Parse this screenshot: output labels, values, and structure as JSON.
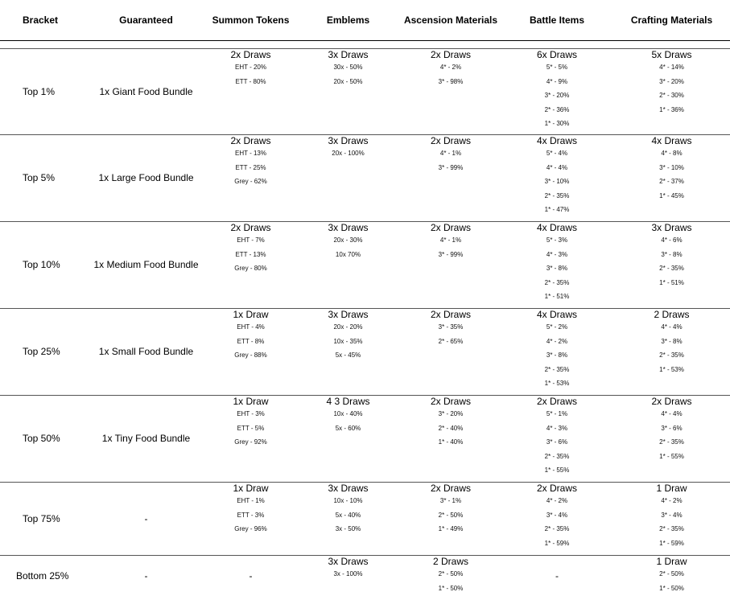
{
  "headers": {
    "bracket": "Bracket",
    "guaranteed": "Guaranteed",
    "summon_tokens": "Summon Tokens",
    "emblems": "Emblems",
    "ascension_materials": "Ascension Materials",
    "battle_items": "Battle Items",
    "crafting_materials": "Crafting Materials"
  },
  "rows": [
    {
      "bracket": "Top 1%",
      "guaranteed": "1x Giant Food Bundle",
      "summon_tokens": {
        "draws": "2x Draws",
        "lines": [
          "EHT - 20%",
          "ETT - 80%"
        ]
      },
      "emblems": {
        "draws": "3x Draws",
        "lines": [
          "30x - 50%",
          "20x - 50%"
        ]
      },
      "ascension_materials": {
        "draws": "2x Draws",
        "lines": [
          "4* - 2%",
          "3* - 98%"
        ]
      },
      "battle_items": {
        "draws": "6x Draws",
        "lines": [
          "5* - 5%",
          "4* - 9%",
          "3* - 20%",
          "2* - 36%",
          "1* - 30%"
        ]
      },
      "crafting_materials": {
        "draws": "5x Draws",
        "lines": [
          "4* - 14%",
          "3* - 20%",
          "2* - 30%",
          "1* - 36%"
        ]
      }
    },
    {
      "bracket": "Top 5%",
      "guaranteed": "1x Large Food Bundle",
      "summon_tokens": {
        "draws": "2x Draws",
        "lines": [
          "EHT - 13%",
          "ETT - 25%",
          "Grey - 62%"
        ]
      },
      "emblems": {
        "draws": "3x Draws",
        "lines": [
          "20x - 100%"
        ]
      },
      "ascension_materials": {
        "draws": "2x Draws",
        "lines": [
          "4* - 1%",
          "3* - 99%"
        ]
      },
      "battle_items": {
        "draws": "4x Draws",
        "lines": [
          "5* - 4%",
          "4* - 4%",
          "3* - 10%",
          "2* - 35%",
          "1* - 47%"
        ]
      },
      "crafting_materials": {
        "draws": "4x Draws",
        "lines": [
          "4* - 8%",
          "3* - 10%",
          "2* - 37%",
          "1* - 45%"
        ]
      }
    },
    {
      "bracket": "Top 10%",
      "guaranteed": "1x Medium Food Bundle",
      "summon_tokens": {
        "draws": "2x Draws",
        "lines": [
          "EHT - 7%",
          "ETT - 13%",
          "Grey - 80%"
        ]
      },
      "emblems": {
        "draws": "3x Draws",
        "lines": [
          "20x - 30%",
          "10x 70%"
        ]
      },
      "ascension_materials": {
        "draws": "2x Draws",
        "lines": [
          "4* - 1%",
          "3* - 99%"
        ]
      },
      "battle_items": {
        "draws": "4x Draws",
        "lines": [
          "5* - 3%",
          "4* - 3%",
          "3* - 8%",
          "2* - 35%",
          "1* - 51%"
        ]
      },
      "crafting_materials": {
        "draws": "3x Draws",
        "lines": [
          "4* - 6%",
          "3* - 8%",
          "2* - 35%",
          "1* - 51%"
        ]
      }
    },
    {
      "bracket": "Top 25%",
      "guaranteed": "1x Small Food Bundle",
      "summon_tokens": {
        "draws": "1x Draw",
        "lines": [
          "EHT - 4%",
          "ETT - 8%",
          "Grey - 88%"
        ]
      },
      "emblems": {
        "draws": "3x Draws",
        "lines": [
          "20x - 20%",
          "10x - 35%",
          "5x - 45%"
        ]
      },
      "ascension_materials": {
        "draws": "2x Draws",
        "lines": [
          "3* - 35%",
          "2* - 65%"
        ]
      },
      "battle_items": {
        "draws": "4x Draws",
        "lines": [
          "5* - 2%",
          "4* - 2%",
          "3* - 8%",
          "2* - 35%",
          "1* - 53%"
        ]
      },
      "crafting_materials": {
        "draws": "2 Draws",
        "lines": [
          "4* - 4%",
          "3* - 8%",
          "2* - 35%",
          "1* - 53%"
        ]
      }
    },
    {
      "bracket": "Top 50%",
      "guaranteed": "1x Tiny Food Bundle",
      "summon_tokens": {
        "draws": "1x Draw",
        "lines": [
          "EHT - 3%",
          "ETT - 5%",
          "Grey - 92%"
        ]
      },
      "emblems": {
        "draws": "4 3 Draws",
        "lines": [
          "10x - 40%",
          "5x - 60%"
        ]
      },
      "ascension_materials": {
        "draws": "2x Draws",
        "lines": [
          "3* - 20%",
          "2* - 40%",
          "1* - 40%"
        ]
      },
      "battle_items": {
        "draws": "2x Draws",
        "lines": [
          "5* - 1%",
          "4* - 3%",
          "3* - 6%",
          "2* - 35%",
          "1* - 55%"
        ]
      },
      "crafting_materials": {
        "draws": "2x Draws",
        "lines": [
          "4* - 4%",
          "3* - 6%",
          "2* - 35%",
          "1* - 55%"
        ]
      }
    },
    {
      "bracket": "Top 75%",
      "guaranteed": "-",
      "summon_tokens": {
        "draws": "1x Draw",
        "lines": [
          "EHT - 1%",
          "ETT - 3%",
          "Grey - 96%"
        ]
      },
      "emblems": {
        "draws": "3x Draws",
        "lines": [
          "10x - 10%",
          "5x - 40%",
          "3x - 50%"
        ]
      },
      "ascension_materials": {
        "draws": "2x Draws",
        "lines": [
          "3* - 1%",
          "2* - 50%",
          "1* - 49%"
        ]
      },
      "battle_items": {
        "draws": "2x Draws",
        "lines": [
          "4* - 2%",
          "3* - 4%",
          "2* - 35%",
          "1* - 59%"
        ]
      },
      "crafting_materials": {
        "draws": "1 Draw",
        "lines": [
          "4* - 2%",
          "3* - 4%",
          "2* - 35%",
          "1* - 59%"
        ]
      }
    },
    {
      "bracket": "Bottom 25%",
      "guaranteed": "-",
      "summon_tokens": {
        "draws": "",
        "lines": [],
        "dash": "-"
      },
      "emblems": {
        "draws": "3x Draws",
        "lines": [
          "3x - 100%"
        ]
      },
      "ascension_materials": {
        "draws": "2 Draws",
        "lines": [
          "2* - 50%",
          "1* - 50%"
        ]
      },
      "battle_items": {
        "draws": "",
        "lines": [],
        "dash": "-"
      },
      "crafting_materials": {
        "draws": "1 Draw",
        "lines": [
          "2* - 50%",
          "1* - 50%"
        ]
      }
    }
  ]
}
